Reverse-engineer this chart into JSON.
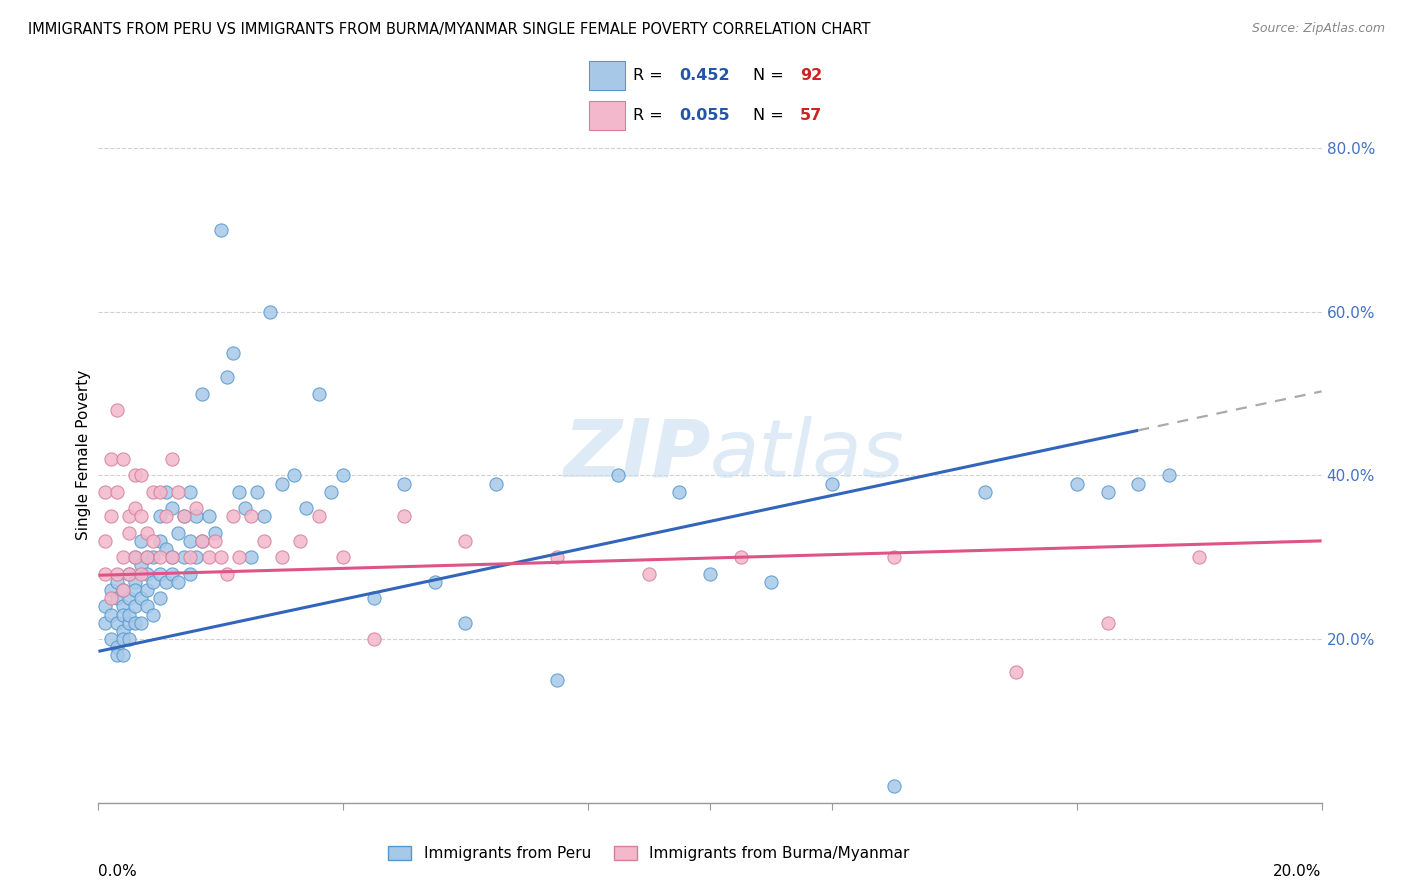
{
  "title": "IMMIGRANTS FROM PERU VS IMMIGRANTS FROM BURMA/MYANMAR SINGLE FEMALE POVERTY CORRELATION CHART",
  "source": "Source: ZipAtlas.com",
  "ylabel": "Single Female Poverty",
  "yticks": [
    0.0,
    0.2,
    0.4,
    0.6,
    0.8
  ],
  "ytick_labels": [
    "",
    "20.0%",
    "40.0%",
    "60.0%",
    "80.0%"
  ],
  "xmin": 0.0,
  "xmax": 0.2,
  "ymin": 0.0,
  "ymax": 0.85,
  "peru_R": 0.452,
  "peru_N": 92,
  "burma_R": 0.055,
  "burma_N": 57,
  "blue_scatter_color": "#a8c8e8",
  "blue_edge_color": "#5599cc",
  "pink_scatter_color": "#f4b8cc",
  "pink_edge_color": "#d48098",
  "blue_line_color": "#3366bb",
  "pink_line_color": "#dd5588",
  "dash_color": "#aaaaaa",
  "watermark_color": "#c8dff0",
  "background_color": "#ffffff",
  "grid_color": "#cccccc",
  "title_fontsize": 10.5,
  "peru_line_x0": 0.0,
  "peru_line_y0": 0.185,
  "peru_line_x1": 0.17,
  "peru_line_y1": 0.455,
  "burma_line_x0": 0.0,
  "burma_line_y0": 0.278,
  "burma_line_x1": 0.2,
  "burma_line_y1": 0.32,
  "peru_x": [
    0.001,
    0.001,
    0.002,
    0.002,
    0.002,
    0.003,
    0.003,
    0.003,
    0.003,
    0.003,
    0.004,
    0.004,
    0.004,
    0.004,
    0.004,
    0.004,
    0.005,
    0.005,
    0.005,
    0.005,
    0.005,
    0.006,
    0.006,
    0.006,
    0.006,
    0.006,
    0.007,
    0.007,
    0.007,
    0.007,
    0.008,
    0.008,
    0.008,
    0.008,
    0.009,
    0.009,
    0.009,
    0.01,
    0.01,
    0.01,
    0.01,
    0.011,
    0.011,
    0.011,
    0.012,
    0.012,
    0.012,
    0.013,
    0.013,
    0.014,
    0.014,
    0.015,
    0.015,
    0.015,
    0.016,
    0.016,
    0.017,
    0.017,
    0.018,
    0.019,
    0.02,
    0.021,
    0.022,
    0.023,
    0.024,
    0.025,
    0.026,
    0.027,
    0.028,
    0.03,
    0.032,
    0.034,
    0.036,
    0.038,
    0.04,
    0.045,
    0.05,
    0.055,
    0.06,
    0.065,
    0.075,
    0.085,
    0.095,
    0.1,
    0.11,
    0.12,
    0.13,
    0.145,
    0.16,
    0.165,
    0.17,
    0.175
  ],
  "peru_y": [
    0.22,
    0.24,
    0.2,
    0.23,
    0.26,
    0.19,
    0.22,
    0.25,
    0.18,
    0.27,
    0.21,
    0.24,
    0.2,
    0.23,
    0.18,
    0.26,
    0.25,
    0.22,
    0.28,
    0.2,
    0.23,
    0.27,
    0.24,
    0.3,
    0.22,
    0.26,
    0.29,
    0.25,
    0.32,
    0.22,
    0.28,
    0.24,
    0.3,
    0.26,
    0.3,
    0.27,
    0.23,
    0.32,
    0.28,
    0.25,
    0.35,
    0.31,
    0.27,
    0.38,
    0.3,
    0.36,
    0.28,
    0.33,
    0.27,
    0.35,
    0.3,
    0.38,
    0.32,
    0.28,
    0.35,
    0.3,
    0.5,
    0.32,
    0.35,
    0.33,
    0.7,
    0.52,
    0.55,
    0.38,
    0.36,
    0.3,
    0.38,
    0.35,
    0.6,
    0.39,
    0.4,
    0.36,
    0.5,
    0.38,
    0.4,
    0.25,
    0.39,
    0.27,
    0.22,
    0.39,
    0.15,
    0.4,
    0.38,
    0.28,
    0.27,
    0.39,
    0.02,
    0.38,
    0.39,
    0.38,
    0.39,
    0.4
  ],
  "burma_x": [
    0.001,
    0.001,
    0.001,
    0.002,
    0.002,
    0.002,
    0.003,
    0.003,
    0.003,
    0.004,
    0.004,
    0.004,
    0.005,
    0.005,
    0.005,
    0.006,
    0.006,
    0.006,
    0.007,
    0.007,
    0.007,
    0.008,
    0.008,
    0.009,
    0.009,
    0.01,
    0.01,
    0.011,
    0.012,
    0.012,
    0.013,
    0.014,
    0.015,
    0.016,
    0.017,
    0.018,
    0.019,
    0.02,
    0.021,
    0.022,
    0.023,
    0.025,
    0.027,
    0.03,
    0.033,
    0.036,
    0.04,
    0.045,
    0.05,
    0.06,
    0.075,
    0.09,
    0.105,
    0.13,
    0.15,
    0.165,
    0.18
  ],
  "burma_y": [
    0.28,
    0.32,
    0.38,
    0.25,
    0.35,
    0.42,
    0.28,
    0.38,
    0.48,
    0.3,
    0.42,
    0.26,
    0.35,
    0.28,
    0.33,
    0.4,
    0.3,
    0.36,
    0.35,
    0.28,
    0.4,
    0.3,
    0.33,
    0.32,
    0.38,
    0.3,
    0.38,
    0.35,
    0.42,
    0.3,
    0.38,
    0.35,
    0.3,
    0.36,
    0.32,
    0.3,
    0.32,
    0.3,
    0.28,
    0.35,
    0.3,
    0.35,
    0.32,
    0.3,
    0.32,
    0.35,
    0.3,
    0.2,
    0.35,
    0.32,
    0.3,
    0.28,
    0.3,
    0.3,
    0.16,
    0.22,
    0.3
  ]
}
